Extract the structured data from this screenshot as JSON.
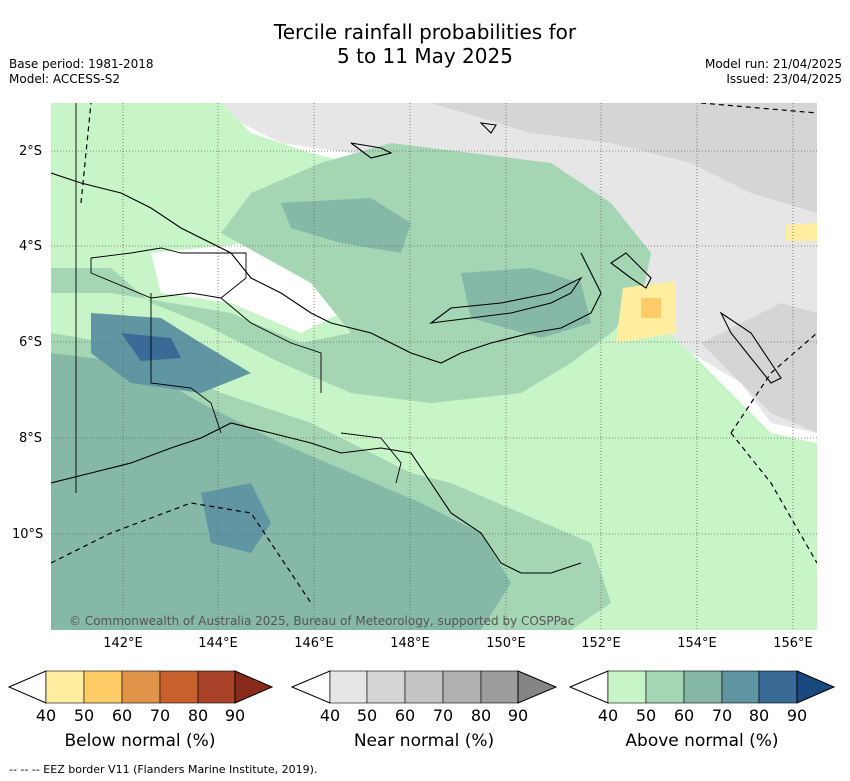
{
  "title_line1": "Tercile rainfall probabilities for",
  "title_line2": "5 to 11 May 2025",
  "base_period": "Base period: 1981-2018",
  "model": "Model: ACCESS-S2",
  "model_run": "Model run: 21/04/2025",
  "issued": "Issued: 23/04/2025",
  "lat_labels": [
    "2°S",
    "4°S",
    "6°S",
    "8°S",
    "10°S"
  ],
  "lon_labels": [
    "142°E",
    "144°E",
    "146°E",
    "148°E",
    "150°E",
    "152°E",
    "154°E",
    "156°E"
  ],
  "credit": "© Commonwealth of Australia 2025, Bureau of Meteorology, supported by COSPPac",
  "colorbars": [
    {
      "label": "Below normal (%)",
      "ticks": [
        "40",
        "50",
        "60",
        "70",
        "80",
        "90"
      ],
      "colors": [
        "#ffeea0",
        "#fdcc66",
        "#e0944a",
        "#c8602e",
        "#a8432a",
        "#8a2a1a"
      ]
    },
    {
      "label": "Near normal (%)",
      "ticks": [
        "40",
        "50",
        "60",
        "70",
        "80",
        "90"
      ],
      "colors": [
        "#e6e6e6",
        "#d5d5d5",
        "#c4c4c4",
        "#b0b0b0",
        "#9c9c9c",
        "#858585"
      ]
    },
    {
      "label": "Above normal (%)",
      "ticks": [
        "40",
        "50",
        "60",
        "70",
        "80",
        "90"
      ],
      "colors": [
        "#c8f5c8",
        "#a4d6b4",
        "#86b8a8",
        "#5f96a2",
        "#3a6a96",
        "#184a80"
      ]
    }
  ],
  "footnote": "-- -- -- EEZ border V11 (Flanders Marine Institute, 2019)."
}
